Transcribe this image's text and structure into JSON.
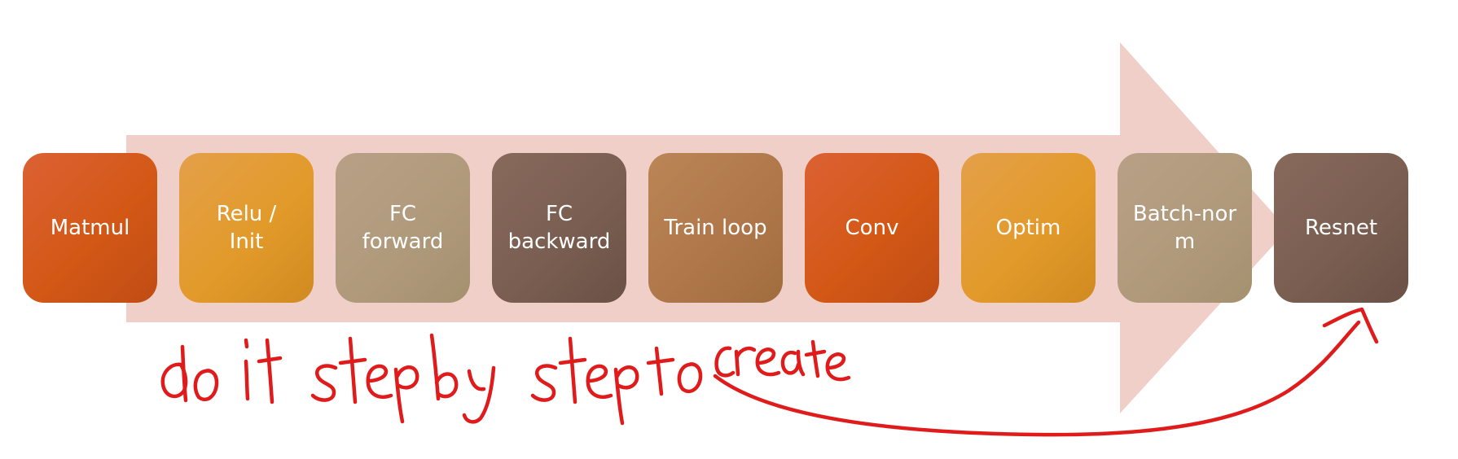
{
  "colors": {
    "arrow": "#f0cfc8",
    "ink": "#e01b1b",
    "orange": "#d35816",
    "amber": "#e29a2a",
    "tan": "#b09a7c",
    "brown": "#7a5e51",
    "sienna": "#b0784a"
  },
  "steps": [
    {
      "label": "Matmul",
      "color": "orange"
    },
    {
      "label": "Relu /\nInit",
      "color": "amber"
    },
    {
      "label": "FC\nforward",
      "color": "tan"
    },
    {
      "label": "FC\nbackward",
      "color": "brown"
    },
    {
      "label": "Train loop",
      "color": "sienna"
    },
    {
      "label": "Conv",
      "color": "orange"
    },
    {
      "label": "Optim",
      "color": "amber"
    },
    {
      "label": "Batch-nor\nm",
      "color": "tan"
    },
    {
      "label": "Resnet",
      "color": "brown"
    }
  ],
  "annotation": {
    "text": "do it step by step to create"
  }
}
